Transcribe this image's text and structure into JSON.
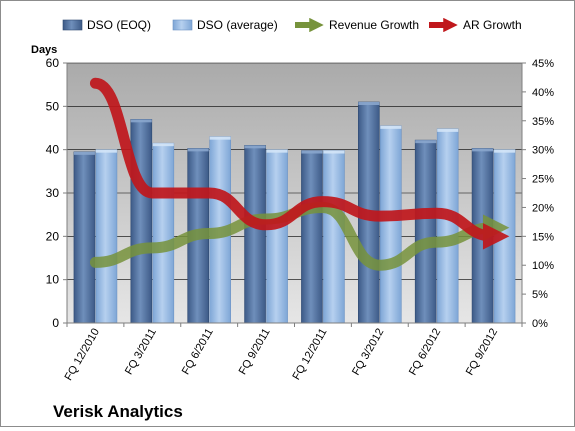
{
  "chart_data": {
    "type": "bar",
    "title": "Verisk Analytics",
    "ylabel": "Days",
    "ylim": [
      0,
      60
    ],
    "y2lim": [
      0,
      0.45
    ],
    "y_ticks": [
      "0",
      "10",
      "20",
      "30",
      "40",
      "50",
      "60"
    ],
    "y2_ticks": [
      "0%",
      "5%",
      "10%",
      "15%",
      "20%",
      "25%",
      "30%",
      "35%",
      "40%",
      "45%"
    ],
    "categories": [
      "FQ 12/2010",
      "FQ 3/2011",
      "FQ 6/2011",
      "FQ 9/2011",
      "FQ 12/2011",
      "FQ 3/2012",
      "FQ 6/2012",
      "FQ 9/2012"
    ],
    "grid": true,
    "legend_position": "top",
    "series": [
      {
        "name": "DSO (EOQ)",
        "type": "bar",
        "axis": "left",
        "color": "#4a6c9b",
        "values": [
          39.5,
          47,
          40.3,
          41,
          39.8,
          51,
          42.2,
          40.3
        ]
      },
      {
        "name": "DSO (average)",
        "type": "bar",
        "axis": "left",
        "color": "#8db3e2",
        "values": [
          40,
          41.5,
          43,
          40,
          39.8,
          45.5,
          44.8,
          40
        ]
      },
      {
        "name": "Revenue Growth",
        "type": "line",
        "axis": "right",
        "color": "#77933c",
        "values": [
          0.105,
          0.13,
          0.155,
          0.18,
          0.2,
          0.1,
          0.14,
          0.165
        ]
      },
      {
        "name": "AR Growth",
        "type": "line",
        "axis": "right",
        "color": "#c0171c",
        "values": [
          0.415,
          0.225,
          0.225,
          0.17,
          0.21,
          0.185,
          0.19,
          0.15
        ]
      }
    ]
  },
  "colors": {
    "plot_background_top": "#aaaaaa",
    "plot_background_bottom": "#e6e6e6",
    "gridline": "#000000",
    "bar_eoq_light": "#6f8fbb",
    "bar_eoq_dark": "#3d5a87",
    "bar_avg_light": "#b6d0ef",
    "bar_avg_dark": "#7ea6d6"
  }
}
